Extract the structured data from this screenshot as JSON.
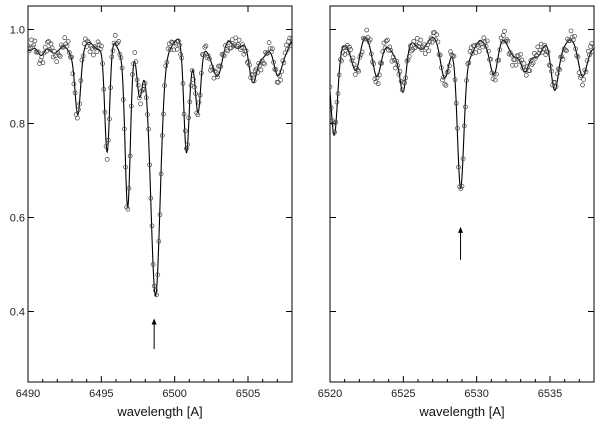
{
  "chart_data": [
    {
      "type": "line",
      "xlabel": "wavelength [A]",
      "ylabel": "",
      "xlim": [
        6490,
        6508
      ],
      "ylim": [
        0.25,
        1.05
      ],
      "xticks": [
        6490,
        6495,
        6500,
        6505
      ],
      "xtick_labels": [
        "6490",
        "6495",
        "6500",
        "6505"
      ],
      "yticks": [
        0.4,
        0.6,
        0.8,
        1.0
      ],
      "ytick_labels": [
        "0.4",
        "0.6",
        "0.8",
        "1.0"
      ],
      "grid": false,
      "line_color": "#000000",
      "marker_color": "#444444",
      "arrow": {
        "x": 6498.6,
        "y_from": 0.32,
        "y_to": 0.385
      },
      "continuum": 0.96,
      "wiggle": 0.025,
      "lines": [
        {
          "center": 6490.9,
          "depth": 0.04,
          "width": 0.25
        },
        {
          "center": 6493.4,
          "depth": 0.12,
          "width": 0.18
        },
        {
          "center": 6495.4,
          "depth": 0.24,
          "width": 0.17
        },
        {
          "center": 6496.8,
          "depth": 0.33,
          "width": 0.18
        },
        {
          "center": 6497.6,
          "depth": 0.09,
          "width": 0.18
        },
        {
          "center": 6498.7,
          "depth": 0.54,
          "width": 0.32
        },
        {
          "center": 6500.8,
          "depth": 0.22,
          "width": 0.18
        },
        {
          "center": 6501.6,
          "depth": 0.13,
          "width": 0.18
        },
        {
          "center": 6503.0,
          "depth": 0.05,
          "width": 0.3
        },
        {
          "center": 6505.3,
          "depth": 0.08,
          "width": 0.25
        },
        {
          "center": 6507.0,
          "depth": 0.05,
          "width": 0.25
        }
      ]
    },
    {
      "type": "line",
      "xlabel": "wavelength [A]",
      "ylabel": "",
      "xlim": [
        6520,
        6538
      ],
      "ylim": [
        0.25,
        1.05
      ],
      "xticks": [
        6520,
        6525,
        6530,
        6535
      ],
      "xtick_labels": [
        "6520",
        "6525",
        "6530",
        "6535"
      ],
      "yticks": [
        0.4,
        0.6,
        0.8,
        1.0
      ],
      "ytick_labels": [
        "",
        "",
        "",
        ""
      ],
      "grid": false,
      "line_color": "#000000",
      "marker_color": "#444444",
      "arrow": {
        "x": 6528.9,
        "y_from": 0.51,
        "y_to": 0.58
      },
      "continuum": 0.96,
      "wiggle": 0.025,
      "lines": [
        {
          "center": 6520.3,
          "depth": 0.17,
          "width": 0.22
        },
        {
          "center": 6521.8,
          "depth": 0.05,
          "width": 0.25
        },
        {
          "center": 6523.2,
          "depth": 0.05,
          "width": 0.25
        },
        {
          "center": 6525.0,
          "depth": 0.08,
          "width": 0.2
        },
        {
          "center": 6527.8,
          "depth": 0.05,
          "width": 0.25
        },
        {
          "center": 6528.9,
          "depth": 0.29,
          "width": 0.22
        },
        {
          "center": 6531.2,
          "depth": 0.06,
          "width": 0.25
        },
        {
          "center": 6533.3,
          "depth": 0.05,
          "width": 0.25
        },
        {
          "center": 6535.3,
          "depth": 0.1,
          "width": 0.25
        },
        {
          "center": 6537.2,
          "depth": 0.04,
          "width": 0.25
        }
      ]
    }
  ]
}
